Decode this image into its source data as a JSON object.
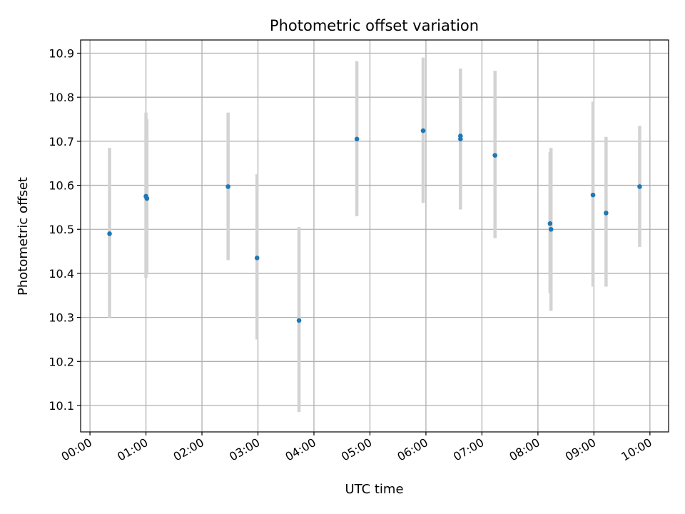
{
  "chart_data": {
    "type": "scatter",
    "title": "Photometric offset variation",
    "xlabel": "UTC time",
    "ylabel": "Photometric offset",
    "xlim": [
      "23:50",
      "10:20"
    ],
    "ylim": [
      10.04,
      10.93
    ],
    "xticks": [
      "00:00",
      "01:00",
      "02:00",
      "03:00",
      "04:00",
      "05:00",
      "06:00",
      "07:00",
      "08:00",
      "09:00",
      "10:00"
    ],
    "yticks": [
      "10.1",
      "10.2",
      "10.3",
      "10.4",
      "10.5",
      "10.6",
      "10.7",
      "10.8",
      "10.9"
    ],
    "grid": true,
    "colors": {
      "point": "#1f77b4",
      "errorbar": "#d3d3d3",
      "grid": "#b0b0b0"
    },
    "series": [
      {
        "points": [
          {
            "x": "00:21",
            "y": 10.49,
            "ylow": 10.3,
            "yhigh": 10.685
          },
          {
            "x": "01:00",
            "y": 10.575,
            "ylow": 10.39,
            "yhigh": 10.765
          },
          {
            "x": "01:01",
            "y": 10.57,
            "ylow": 10.4,
            "yhigh": 10.75
          },
          {
            "x": "02:28",
            "y": 10.597,
            "ylow": 10.43,
            "yhigh": 10.765
          },
          {
            "x": "02:59",
            "y": 10.435,
            "ylow": 10.25,
            "yhigh": 10.625
          },
          {
            "x": "03:44",
            "y": 10.293,
            "ylow": 10.085,
            "yhigh": 10.505
          },
          {
            "x": "04:46",
            "y": 10.705,
            "ylow": 10.53,
            "yhigh": 10.882
          },
          {
            "x": "05:57",
            "y": 10.724,
            "ylow": 10.56,
            "yhigh": 10.89
          },
          {
            "x": "06:37",
            "y": 10.712,
            "ylow": 10.56,
            "yhigh": 10.865
          },
          {
            "x": "06:37",
            "y": 10.705,
            "ylow": 10.545,
            "yhigh": 10.865
          },
          {
            "x": "07:14",
            "y": 10.668,
            "ylow": 10.48,
            "yhigh": 10.86
          },
          {
            "x": "08:13",
            "y": 10.513,
            "ylow": 10.355,
            "yhigh": 10.675
          },
          {
            "x": "08:14",
            "y": 10.5,
            "ylow": 10.315,
            "yhigh": 10.685
          },
          {
            "x": "08:59",
            "y": 10.578,
            "ylow": 10.37,
            "yhigh": 10.79
          },
          {
            "x": "09:13",
            "y": 10.537,
            "ylow": 10.37,
            "yhigh": 10.71
          },
          {
            "x": "09:49",
            "y": 10.597,
            "ylow": 10.46,
            "yhigh": 10.735
          }
        ]
      }
    ]
  }
}
